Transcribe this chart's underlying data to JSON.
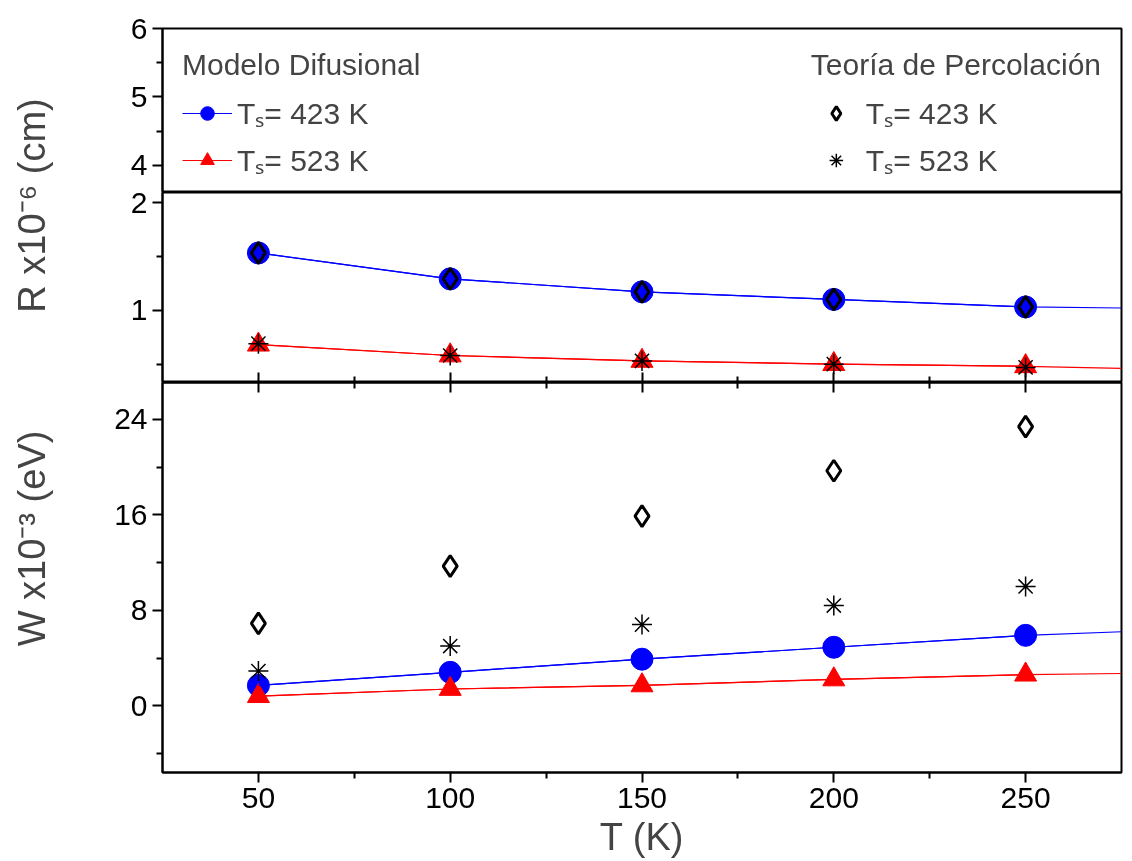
{
  "chart_data": [
    {
      "type": "line",
      "xlim": [
        25,
        275
      ],
      "ylim": [
        3.6,
        6
      ],
      "yticks": [
        4,
        {
          "value": 4.5,
          "label": null
        },
        5,
        {
          "value": 5.5,
          "label": null
        },
        6
      ],
      "tick_labels": "y"
    },
    {
      "type": "line",
      "xlim": [
        25,
        275
      ],
      "ylim": [
        0.33,
        2.09
      ],
      "yticks": [
        {
          "value": 0.5,
          "label": null
        },
        1,
        {
          "value": 1.5,
          "label": null
        },
        2
      ],
      "xticks": [
        50,
        {
          "value": 75,
          "label": null
        },
        100,
        {
          "value": 125,
          "label": null
        },
        150,
        {
          "value": 175,
          "label": null
        },
        200,
        {
          "value": 225,
          "label": null
        },
        250
      ],
      "tick_labels": "y",
      "ylabel": "R x10⁻⁶ (cm)",
      "legend": "top",
      "annotations": [
        "Modelo Difusional",
        "Teoría de Percolación"
      ],
      "x": [
        50,
        100,
        150,
        200,
        250
      ],
      "series": [
        {
          "name": "Tₛ= 423 K",
          "marker": "circle",
          "color": "#0000ff",
          "values": [
            1.53,
            1.29,
            1.17,
            1.1,
            1.03
          ]
        },
        {
          "name": "Tₛ= 523 K",
          "marker": "triangle",
          "color": "#ff0000",
          "values": [
            0.68,
            0.58,
            0.53,
            0.5,
            0.48
          ]
        },
        {
          "marker": "none",
          "color": "#0000ff",
          "x": [
            50,
            100,
            150,
            200,
            250,
            275
          ],
          "values": [
            1.53,
            1.29,
            1.17,
            1.1,
            1.03,
            1.02
          ]
        },
        {
          "marker": "none",
          "color": "#ff0000",
          "x": [
            50,
            100,
            150,
            200,
            250,
            275
          ],
          "values": [
            0.68,
            0.58,
            0.53,
            0.5,
            0.48,
            0.46
          ]
        },
        {
          "name": "Tₛ= 423 K",
          "type": "scatter",
          "marker": "diamond",
          "color": "#000000",
          "values": [
            1.53,
            1.29,
            1.17,
            1.1,
            1.03
          ]
        },
        {
          "name": "Tₛ= 523 K",
          "type": "scatter",
          "marker": "cross",
          "color": "#000000",
          "values": [
            0.69,
            0.58,
            0.53,
            0.5,
            0.47
          ]
        }
      ]
    },
    {
      "type": "line",
      "xlim": [
        25,
        275
      ],
      "ylim": [
        -5.6,
        27.1
      ],
      "yticks": [
        {
          "value": -4,
          "label": null
        },
        0,
        {
          "value": 4,
          "label": null
        },
        8,
        {
          "value": 12,
          "label": null
        },
        16,
        {
          "value": 20,
          "label": null
        },
        24
      ],
      "xticks": [
        50,
        {
          "value": 75,
          "label": null
        },
        100,
        {
          "value": 125,
          "label": null
        },
        150,
        {
          "value": 175,
          "label": null
        },
        200,
        {
          "value": 225,
          "label": null
        },
        250
      ],
      "xlabel": "T (K)",
      "ylabel": "W x10⁻³ (eV)",
      "x": [
        50,
        100,
        150,
        200,
        250
      ],
      "series": [
        {
          "marker": "circle",
          "color": "#0000ff",
          "values": [
            1.7,
            2.8,
            3.9,
            4.9,
            5.9
          ]
        },
        {
          "marker": "triangle",
          "color": "#ff0000",
          "values": [
            0.8,
            1.4,
            1.7,
            2.2,
            2.6
          ]
        },
        {
          "marker": "none",
          "color": "#0000ff",
          "x": [
            50,
            100,
            150,
            200,
            250,
            275
          ],
          "values": [
            1.7,
            2.8,
            3.9,
            4.9,
            5.9,
            6.2
          ]
        },
        {
          "marker": "none",
          "color": "#ff0000",
          "x": [
            50,
            100,
            150,
            200,
            250,
            275
          ],
          "values": [
            0.8,
            1.4,
            1.7,
            2.2,
            2.6,
            2.7
          ]
        },
        {
          "type": "scatter",
          "marker": "diamond",
          "color": "#000000",
          "values": [
            6.9,
            11.7,
            15.9,
            19.7,
            23.4
          ]
        },
        {
          "type": "scatter",
          "marker": "cross",
          "color": "#000000",
          "values": [
            2.9,
            5.0,
            6.8,
            8.4,
            10.0
          ]
        }
      ]
    }
  ]
}
